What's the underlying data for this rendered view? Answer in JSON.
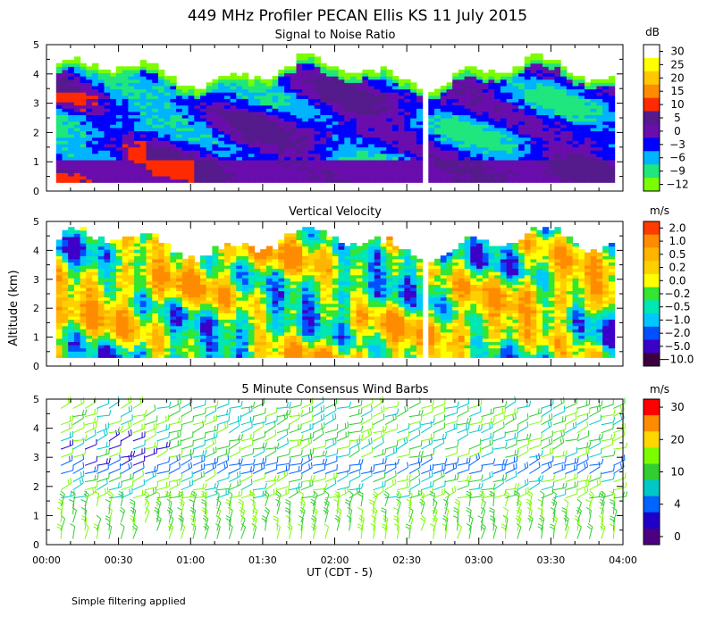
{
  "title": "449 MHz Profiler PECAN Ellis KS 11 July 2015",
  "ylabel": "Altitude (km)",
  "xlabel": "UT  (CDT - 5)",
  "footnote": "Simple filtering applied",
  "x_ticks": [
    "00:00",
    "00:30",
    "01:00",
    "01:30",
    "02:00",
    "02:30",
    "03:00",
    "03:30",
    "04:00"
  ],
  "y_ticks": [
    "0",
    "1",
    "2",
    "3",
    "4",
    "5"
  ],
  "chart_data": [
    {
      "type": "heatmap",
      "title": "Signal to Noise Ratio",
      "unit": "dB",
      "xlim": [
        0,
        240
      ],
      "ylim": [
        0,
        5
      ],
      "xlabel": "UT  (CDT - 5)",
      "ylabel": "Altitude (km)",
      "data_gap_minutes": [
        154,
        158
      ],
      "colorbar": {
        "labels": [
          "30",
          "25",
          "20",
          "15",
          "10",
          "5",
          "0",
          "−3",
          "−6",
          "−9",
          "−12"
        ],
        "colors": [
          "#ffffff",
          "#ffff00",
          "#ffc800",
          "#ff8c00",
          "#ff2a00",
          "#551a8b",
          "#6a0dad",
          "#0000ff",
          "#00b4ff",
          "#1fe67d",
          "#7cfc00"
        ]
      },
      "echo_top_km": 4.0
    },
    {
      "type": "heatmap",
      "title": "Vertical Velocity",
      "unit": "m/s",
      "xlim": [
        0,
        240
      ],
      "ylim": [
        0,
        5
      ],
      "xlabel": "UT  (CDT - 5)",
      "ylabel": "Altitude (km)",
      "data_gap_minutes": [
        154,
        158
      ],
      "colorbar": {
        "labels": [
          "2.0",
          "1.0",
          "0.5",
          "0.2",
          "0.0",
          "−0.2",
          "−0.5",
          "−1.0",
          "−2.0",
          "−5.0",
          "−10.0"
        ],
        "colors": [
          "#ff3c00",
          "#ff8c00",
          "#ffb400",
          "#ffd000",
          "#ffff00",
          "#32e632",
          "#00e6b4",
          "#00c8ff",
          "#0050ff",
          "#3c00c8",
          "#3c003c"
        ]
      },
      "echo_top_km": 4.2
    },
    {
      "type": "scatter",
      "title": "5 Minute Consensus Wind Barbs",
      "unit": "m/s",
      "xlim": [
        0,
        240
      ],
      "ylim": [
        0,
        5
      ],
      "xlabel": "UT  (CDT - 5)",
      "ylabel": "Altitude (km)",
      "colorbar": {
        "labels": [
          "30",
          "20",
          "10",
          "4",
          "0"
        ],
        "colors": [
          "#ff0000",
          "#ff8c00",
          "#ffd700",
          "#7cfc00",
          "#32cd32",
          "#00c8c8",
          "#0064ff",
          "#1e00c8",
          "#4b0082"
        ]
      }
    }
  ]
}
